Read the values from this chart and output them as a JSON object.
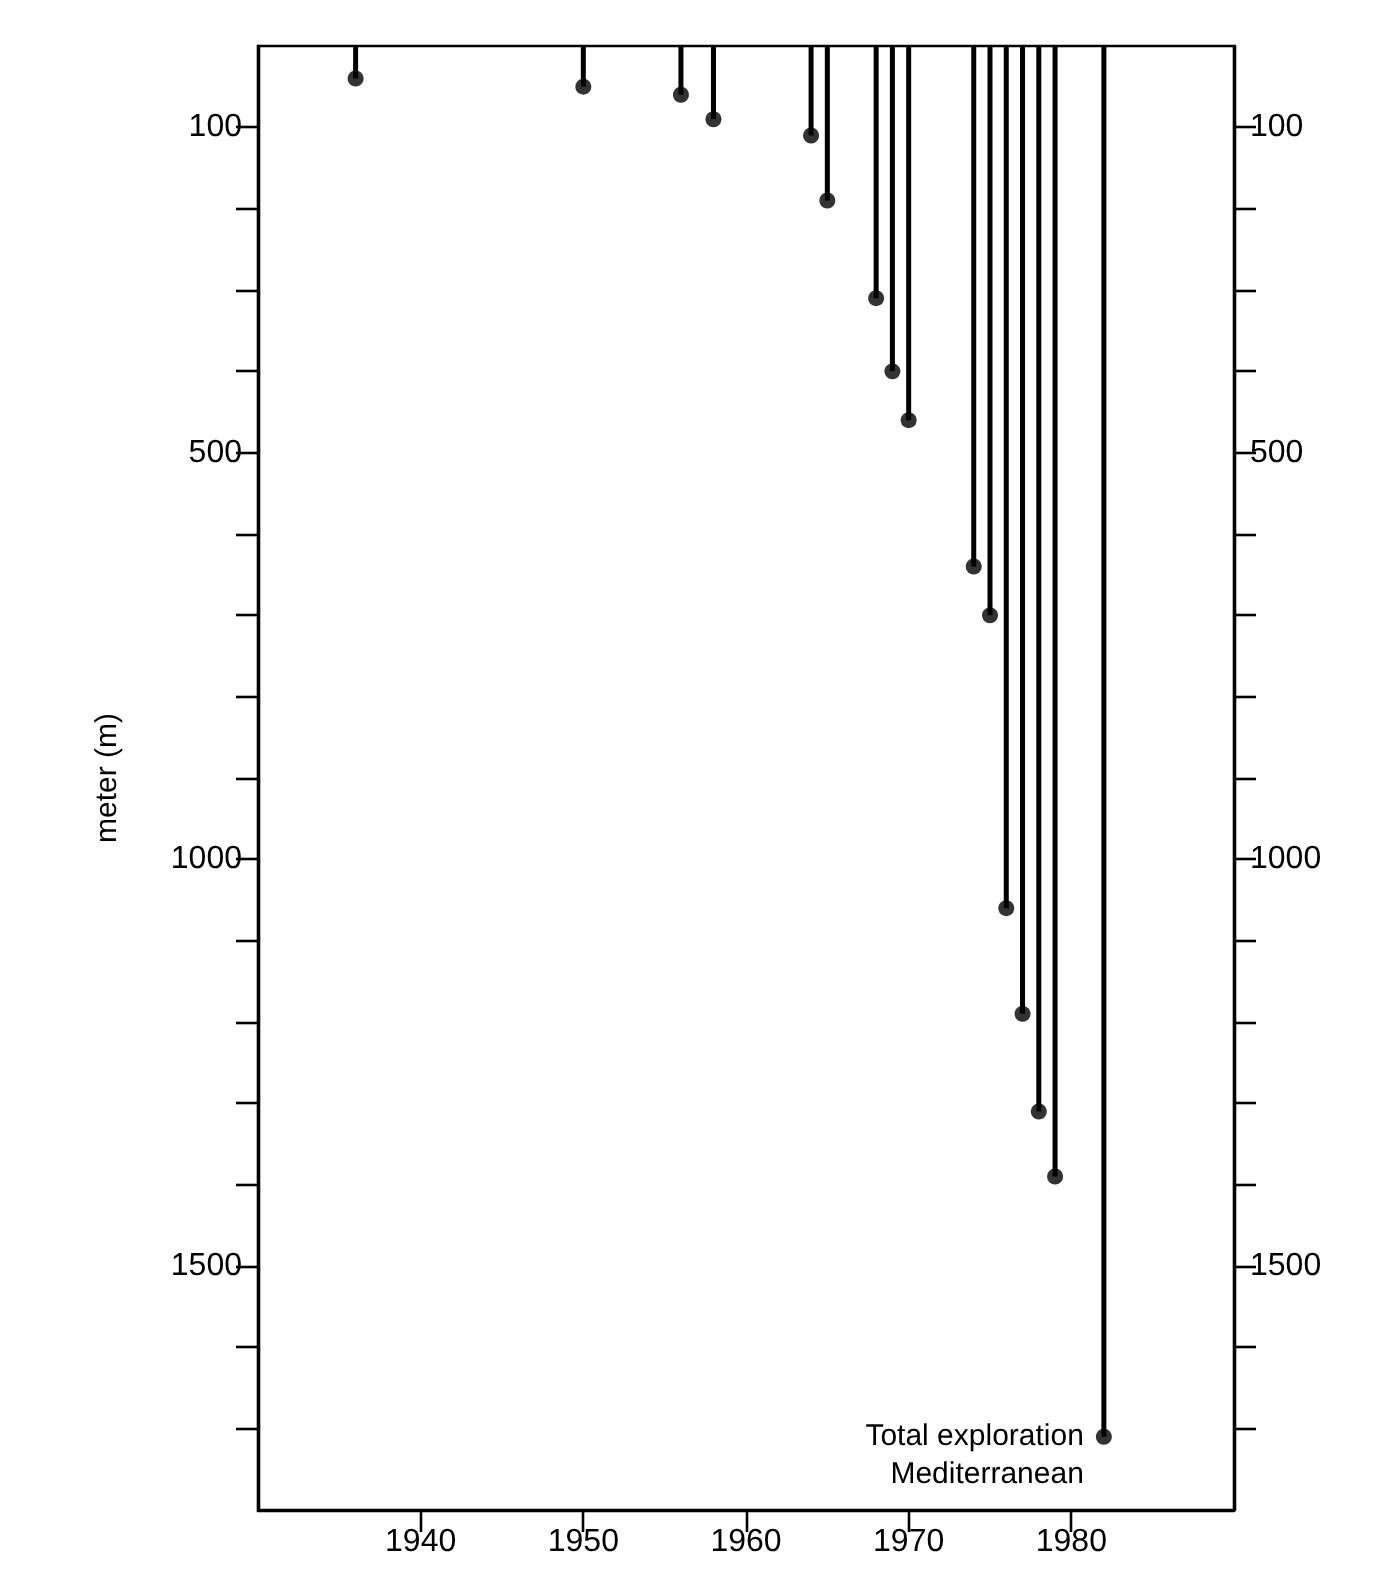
{
  "chart_data": {
    "type": "lollipop",
    "ylabel": "meter (m)",
    "x": [
      1936,
      1950,
      1956,
      1958,
      1964,
      1965,
      1968,
      1969,
      1970,
      1974,
      1975,
      1976,
      1977,
      1978,
      1979,
      1982
    ],
    "values": [
      40,
      50,
      60,
      90,
      110,
      190,
      310,
      400,
      460,
      640,
      700,
      1060,
      1190,
      1310,
      1390,
      1710
    ],
    "color": "#000000",
    "marker": "circle",
    "xlim": [
      1930,
      1990
    ],
    "xticks": [
      1940,
      1950,
      1960,
      1970,
      1980
    ],
    "ylim": [
      1800,
      0
    ],
    "yticks": [
      {
        "value": 100,
        "label": "100"
      },
      {
        "value": 200,
        "label": null
      },
      {
        "value": 300,
        "label": null
      },
      {
        "value": 400,
        "label": null
      },
      {
        "value": 500,
        "label": "500"
      },
      {
        "value": 600,
        "label": null
      },
      {
        "value": 700,
        "label": null
      },
      {
        "value": 800,
        "label": null
      },
      {
        "value": 900,
        "label": null
      },
      {
        "value": 1000,
        "label": "1000"
      },
      {
        "value": 1100,
        "label": null
      },
      {
        "value": 1200,
        "label": null
      },
      {
        "value": 1300,
        "label": null
      },
      {
        "value": 1400,
        "label": null
      },
      {
        "value": 1500,
        "label": "1500"
      },
      {
        "value": 1600,
        "label": null
      },
      {
        "value": 1700,
        "label": null
      }
    ],
    "y2lim": [
      1800,
      0
    ],
    "y2ticks": [
      {
        "value": 100,
        "label": "100"
      },
      {
        "value": 200,
        "label": null
      },
      {
        "value": 300,
        "label": null
      },
      {
        "value": 400,
        "label": null
      },
      {
        "value": 500,
        "label": "500"
      },
      {
        "value": 600,
        "label": null
      },
      {
        "value": 700,
        "label": null
      },
      {
        "value": 800,
        "label": null
      },
      {
        "value": 900,
        "label": null
      },
      {
        "value": 1000,
        "label": "1000"
      },
      {
        "value": 1100,
        "label": null
      },
      {
        "value": 1200,
        "label": null
      },
      {
        "value": 1300,
        "label": null
      },
      {
        "value": 1400,
        "label": null
      },
      {
        "value": 1500,
        "label": "1500"
      },
      {
        "value": 1600,
        "label": null
      },
      {
        "value": 1700,
        "label": null
      }
    ],
    "annotations": [
      {
        "text": "Total exploration\nMediterranean",
        "x": 1982,
        "y": 1710
      }
    ],
    "grid": false
  }
}
